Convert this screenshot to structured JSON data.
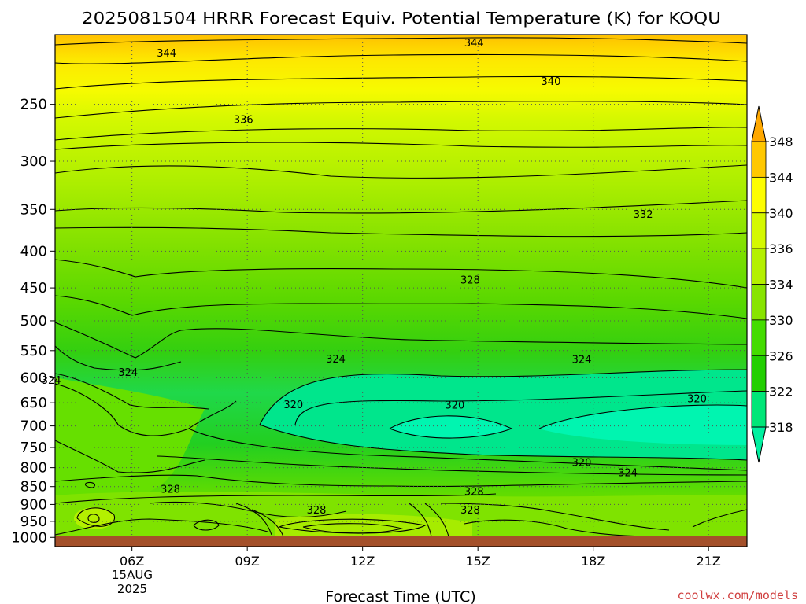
{
  "chart_data": {
    "type": "heatmap",
    "title": "2025081504 HRRR Forecast Equiv. Potential Temperature (K) for KOQU",
    "xlabel": "Forecast Time (UTC)",
    "ylabel": "",
    "x_ticks": [
      {
        "label": "06Z",
        "hour": 6
      },
      {
        "label": "09Z",
        "hour": 9
      },
      {
        "label": "12Z",
        "hour": 12
      },
      {
        "label": "15Z",
        "hour": 15
      },
      {
        "label": "18Z",
        "hour": 18
      },
      {
        "label": "21Z",
        "hour": 21
      }
    ],
    "date_label": [
      "15AUG",
      "2025"
    ],
    "x_range_hours": [
      4,
      22
    ],
    "y_axis_pressure_hPa": [
      250,
      300,
      350,
      400,
      450,
      500,
      550,
      600,
      650,
      700,
      750,
      800,
      850,
      900,
      950,
      1000
    ],
    "y_range_hPa": [
      200,
      1030
    ],
    "colorbar_levels": [
      318,
      322,
      326,
      330,
      334,
      336,
      340,
      344,
      348
    ],
    "colorbar_colors": [
      "#00f0a0",
      "#00e678",
      "#22cf00",
      "#44dc00",
      "#88e400",
      "#b4f000",
      "#d4f800",
      "#fdfd00",
      "#ffc800",
      "#ffa800"
    ],
    "contour_labels": [
      {
        "text": "344",
        "hour": 6.9,
        "p": 212
      },
      {
        "text": "344",
        "hour": 14.9,
        "p": 205
      },
      {
        "text": "340",
        "hour": 16.9,
        "p": 232
      },
      {
        "text": "336",
        "hour": 8.9,
        "p": 262
      },
      {
        "text": "332",
        "hour": 19.3,
        "p": 355
      },
      {
        "text": "328",
        "hour": 14.8,
        "p": 438
      },
      {
        "text": "324",
        "hour": 11.3,
        "p": 564
      },
      {
        "text": "324",
        "hour": 5.9,
        "p": 589
      },
      {
        "text": "324",
        "hour": 3.9,
        "p": 604
      },
      {
        "text": "324",
        "hour": 17.7,
        "p": 565
      },
      {
        "text": "320",
        "hour": 10.2,
        "p": 653
      },
      {
        "text": "320",
        "hour": 14.4,
        "p": 654
      },
      {
        "text": "320",
        "hour": 20.7,
        "p": 641
      },
      {
        "text": "320",
        "hour": 17.7,
        "p": 786
      },
      {
        "text": "324",
        "hour": 18.9,
        "p": 812
      },
      {
        "text": "328",
        "hour": 7.0,
        "p": 856
      },
      {
        "text": "328",
        "hour": 14.9,
        "p": 862
      },
      {
        "text": "328",
        "hour": 10.8,
        "p": 915
      },
      {
        "text": "328",
        "hour": 14.8,
        "p": 915
      }
    ],
    "ground_color": "#a4502a",
    "watermark": "coolwx.com/models"
  }
}
